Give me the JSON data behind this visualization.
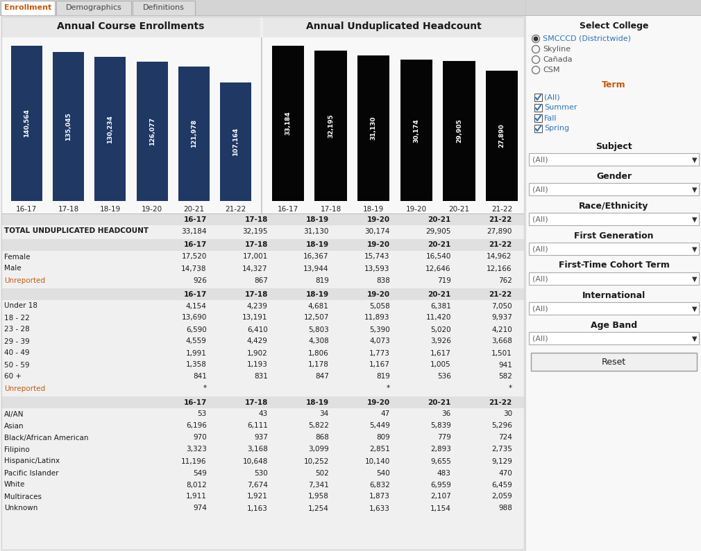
{
  "tab_labels": [
    "Enrollment",
    "Demographics",
    "Definitions"
  ],
  "chart1_title": "Annual Course Enrollments",
  "chart2_title": "Annual Unduplicated Headcount",
  "years": [
    "16-17",
    "17-18",
    "18-19",
    "19-20",
    "20-21",
    "21-22"
  ],
  "enrollments": [
    140564,
    135045,
    130234,
    126077,
    121978,
    107164
  ],
  "headcounts": [
    33184,
    32195,
    31130,
    30174,
    29905,
    27890
  ],
  "bar_color_enrollment": "#1F3864",
  "bar_color_headcount": "#050505",
  "bg_color": "#f0f0f0",
  "white_bg": "#ffffff",
  "header_bg": "#e8e8e8",
  "sidebar_bg": "#f8f8f8",
  "orange_text": "#c55a11",
  "blue_link": "#2e75b6",
  "dark_text": "#1a1a1a",
  "gray_text": "#555555",
  "tab_bar_bg": "#d4d4d4",
  "select_college_label": "Select College",
  "college_options": [
    "SMCCCD (Districtwide)",
    "Skyline",
    "Cañada",
    "CSM"
  ],
  "term_label": "Term",
  "term_options": [
    "(All)",
    "Summer",
    "Fall",
    "Spring"
  ],
  "filter_labels": [
    "Subject",
    "Gender",
    "Race/Ethnicity",
    "First Generation",
    "First-Time Cohort Term",
    "International",
    "Age Band"
  ],
  "total_row_label": "TOTAL UNDUPLICATED HEADCOUNT",
  "total_values": [
    33184,
    32195,
    31130,
    30174,
    29905,
    27890
  ],
  "gender_rows": [
    [
      "Female",
      17520,
      17001,
      16367,
      15743,
      16540,
      14962
    ],
    [
      "Male",
      14738,
      14327,
      13944,
      13593,
      12646,
      12166
    ],
    [
      "Unreported",
      926,
      867,
      819,
      838,
      719,
      762
    ]
  ],
  "age_rows": [
    [
      "Under 18",
      4154,
      4239,
      4681,
      5058,
      6381,
      7050
    ],
    [
      "18 - 22",
      13690,
      13191,
      12507,
      11893,
      11420,
      9937
    ],
    [
      "23 - 28",
      6590,
      6410,
      5803,
      5390,
      5020,
      4210
    ],
    [
      "29 - 39",
      4559,
      4429,
      4308,
      4073,
      3926,
      3668
    ],
    [
      "40 - 49",
      1991,
      1902,
      1806,
      1773,
      1617,
      1501
    ],
    [
      "50 - 59",
      1358,
      1193,
      1178,
      1167,
      1005,
      941
    ],
    [
      "60 +",
      841,
      831,
      847,
      819,
      536,
      582
    ],
    [
      "Unreported",
      "*",
      "",
      "",
      "*",
      "",
      "*"
    ]
  ],
  "race_rows": [
    [
      "AI/AN",
      53,
      43,
      34,
      47,
      36,
      30
    ],
    [
      "Asian",
      6196,
      6111,
      5822,
      5449,
      5839,
      5296
    ],
    [
      "Black/African American",
      970,
      937,
      868,
      809,
      779,
      724
    ],
    [
      "Filipino",
      3323,
      3168,
      3099,
      2851,
      2893,
      2735
    ],
    [
      "Hispanic/Latinx",
      11196,
      10648,
      10252,
      10140,
      9655,
      9129
    ],
    [
      "Pacific Islander",
      549,
      530,
      502,
      540,
      483,
      470
    ],
    [
      "White",
      8012,
      7674,
      7341,
      6832,
      6959,
      6459
    ],
    [
      "Multiraces",
      1911,
      1921,
      1958,
      1873,
      2107,
      2059
    ],
    [
      "Unknown",
      974,
      1163,
      1254,
      1633,
      1154,
      988
    ]
  ],
  "unreported_color": "#c55a11",
  "col_headers": [
    "16-17",
    "17-18",
    "18-19",
    "19-20",
    "20-21",
    "21-22"
  ]
}
